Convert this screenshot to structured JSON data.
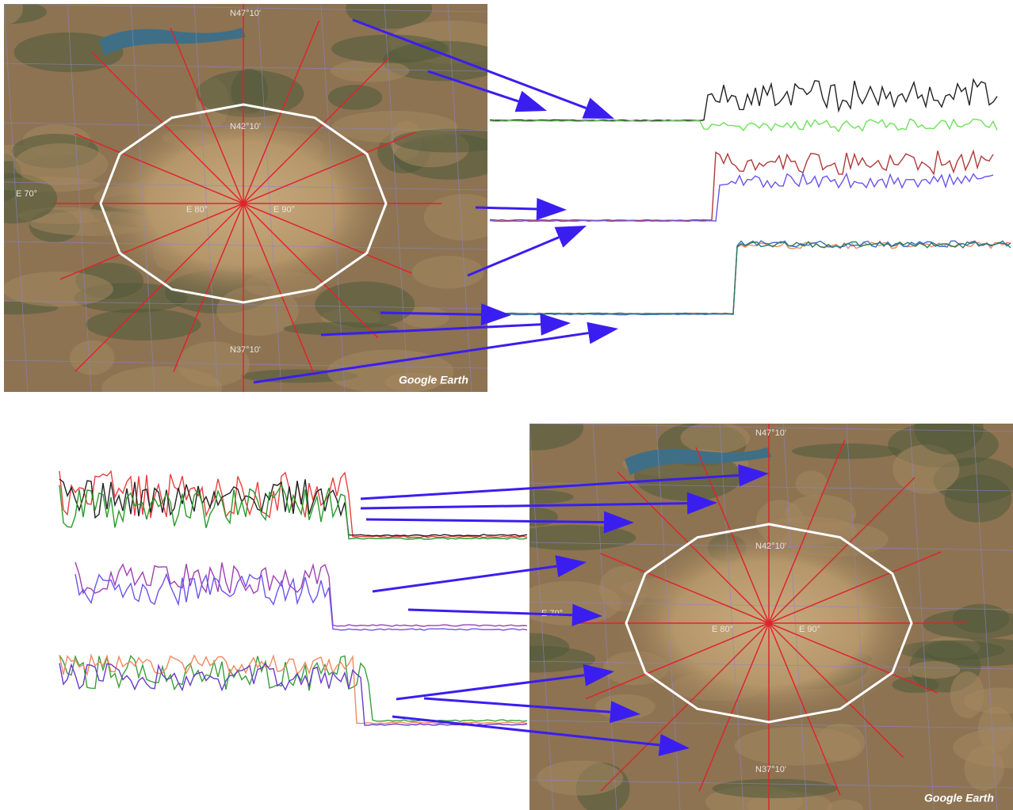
{
  "maps": [
    {
      "labels": [
        "N47°10'",
        "N42°10'",
        "E 70°",
        "E 80°",
        "E 90°",
        "N37°10'"
      ],
      "watermark": "Google Earth"
    },
    {
      "labels": [
        "N47°10'",
        "N42°10'",
        "E 70°",
        "E 80°",
        "E 90°",
        "N37°10'"
      ],
      "watermark": "Google Earth"
    }
  ]
}
